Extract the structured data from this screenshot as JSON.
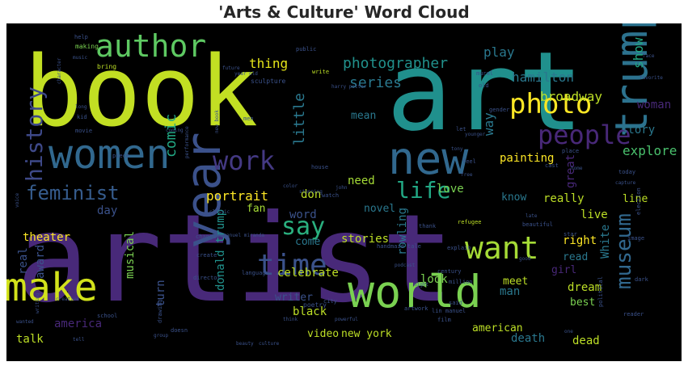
{
  "title": "'Arts & Culture' Word Cloud",
  "colors": {
    "page_bg": "#ffffff",
    "cloud_bg": "#000000"
  },
  "chart_data": {
    "type": "wordcloud",
    "title": "'Arts & Culture' Word Cloud",
    "colormap": "viridis",
    "words": [
      {
        "text": "artist",
        "weight": 1.0,
        "color": "#482979"
      },
      {
        "text": "art",
        "weight": 0.95,
        "color": "#20908d"
      },
      {
        "text": "book",
        "weight": 0.9,
        "color": "#c2df23"
      },
      {
        "text": "women",
        "weight": 0.55,
        "color": "#31688e"
      },
      {
        "text": "new",
        "weight": 0.55,
        "color": "#31688e"
      },
      {
        "text": "year",
        "weight": 0.5,
        "color": "#3b518b"
      },
      {
        "text": "make",
        "weight": 0.5,
        "color": "#d2e21b"
      },
      {
        "text": "world",
        "weight": 0.5,
        "color": "#7ad151"
      },
      {
        "text": "trump",
        "weight": 0.5,
        "color": "#2c728e"
      },
      {
        "text": "author",
        "weight": 0.4,
        "color": "#5ec962"
      },
      {
        "text": "people",
        "weight": 0.4,
        "color": "#482878"
      },
      {
        "text": "photo",
        "weight": 0.4,
        "color": "#fde725"
      },
      {
        "text": "want",
        "weight": 0.4,
        "color": "#a5db36"
      },
      {
        "text": "history",
        "weight": 0.35,
        "color": "#3e4989"
      },
      {
        "text": "work",
        "weight": 0.35,
        "color": "#443983"
      },
      {
        "text": "say",
        "weight": 0.35,
        "color": "#2ab07f"
      },
      {
        "text": "time",
        "weight": 0.35,
        "color": "#3b528b"
      },
      {
        "text": "life",
        "weight": 0.3,
        "color": "#22a884"
      },
      {
        "text": "feminist",
        "weight": 0.3,
        "color": "#365c8d"
      },
      {
        "text": "museum",
        "weight": 0.3,
        "color": "#31688e"
      },
      {
        "text": "photographer",
        "weight": 0.2,
        "color": "#21918c"
      },
      {
        "text": "series",
        "weight": 0.2,
        "color": "#2a788e"
      },
      {
        "text": "thing",
        "weight": 0.2,
        "color": "#e5e419"
      },
      {
        "text": "hamilton",
        "weight": 0.2,
        "color": "#2a788e"
      },
      {
        "text": "play",
        "weight": 0.2,
        "color": "#2a788e"
      },
      {
        "text": "show",
        "weight": 0.2,
        "color": "#22a884"
      },
      {
        "text": "broadway",
        "weight": 0.2,
        "color": "#bddf26"
      },
      {
        "text": "woman",
        "weight": 0.2,
        "color": "#482878"
      },
      {
        "text": "story",
        "weight": 0.2,
        "color": "#2a788e"
      },
      {
        "text": "explore",
        "weight": 0.2,
        "color": "#4ac16d"
      },
      {
        "text": "painting",
        "weight": 0.2,
        "color": "#fde725"
      },
      {
        "text": "mean",
        "weight": 0.15,
        "color": "#2a788e"
      },
      {
        "text": "way",
        "weight": 0.2,
        "color": "#2a788e"
      },
      {
        "text": "comic",
        "weight": 0.2,
        "color": "#22a884"
      },
      {
        "text": "little",
        "weight": 0.2,
        "color": "#2a788e"
      },
      {
        "text": "portrait",
        "weight": 0.2,
        "color": "#fde725"
      },
      {
        "text": "love",
        "weight": 0.2,
        "color": "#7ad151"
      },
      {
        "text": "really",
        "weight": 0.2,
        "color": "#bddf26"
      },
      {
        "text": "live",
        "weight": 0.2,
        "color": "#bddf26"
      },
      {
        "text": "line",
        "weight": 0.2,
        "color": "#bddf26"
      },
      {
        "text": "need",
        "weight": 0.2,
        "color": "#a5db36"
      },
      {
        "text": "don",
        "weight": 0.2,
        "color": "#bddf26"
      },
      {
        "text": "great",
        "weight": 0.2,
        "color": "#482878"
      },
      {
        "text": "know",
        "weight": 0.2,
        "color": "#2a788e"
      },
      {
        "text": "fan",
        "weight": 0.2,
        "color": "#a5db36"
      },
      {
        "text": "word",
        "weight": 0.2,
        "color": "#3b528b"
      },
      {
        "text": "day",
        "weight": 0.2,
        "color": "#3b528b"
      },
      {
        "text": "novel",
        "weight": 0.2,
        "color": "#2a788e"
      },
      {
        "text": "right",
        "weight": 0.2,
        "color": "#fde725"
      },
      {
        "text": "theater",
        "weight": 0.2,
        "color": "#fde725"
      },
      {
        "text": "donald trump",
        "weight": 0.2,
        "color": "#21918c"
      },
      {
        "text": "musical",
        "weight": 0.2,
        "color": "#7ad151"
      },
      {
        "text": "rowling",
        "weight": 0.2,
        "color": "#2a788e"
      },
      {
        "text": "read",
        "weight": 0.2,
        "color": "#2a788e"
      },
      {
        "text": "come",
        "weight": 0.2,
        "color": "#2a788e"
      },
      {
        "text": "celebrate",
        "weight": 0.2,
        "color": "#bddf26"
      },
      {
        "text": "look",
        "weight": 0.2,
        "color": "#7ad151"
      },
      {
        "text": "girl",
        "weight": 0.2,
        "color": "#482878"
      },
      {
        "text": "White",
        "weight": 0.2,
        "color": "#2a788e"
      },
      {
        "text": "dream",
        "weight": 0.2,
        "color": "#bddf26"
      },
      {
        "text": "best",
        "weight": 0.2,
        "color": "#7ad151"
      },
      {
        "text": "award",
        "weight": 0.2,
        "color": "#3b528b"
      },
      {
        "text": "real",
        "weight": 0.2,
        "color": "#3b528b"
      },
      {
        "text": "stories",
        "weight": 0.2,
        "color": "#bddf26"
      },
      {
        "text": "meet",
        "weight": 0.2,
        "color": "#bddf26"
      },
      {
        "text": "man",
        "weight": 0.2,
        "color": "#2a788e"
      },
      {
        "text": "writer",
        "weight": 0.2,
        "color": "#3b528b"
      },
      {
        "text": "turn",
        "weight": 0.2,
        "color": "#3b528b"
      },
      {
        "text": "black",
        "weight": 0.2,
        "color": "#bddf26"
      },
      {
        "text": "america",
        "weight": 0.2,
        "color": "#482878"
      },
      {
        "text": "talk",
        "weight": 0.2,
        "color": "#bddf26"
      },
      {
        "text": "video",
        "weight": 0.2,
        "color": "#bddf26"
      },
      {
        "text": "new york",
        "weight": 0.2,
        "color": "#bddf26"
      },
      {
        "text": "american",
        "weight": 0.2,
        "color": "#bddf26"
      },
      {
        "text": "death",
        "weight": 0.2,
        "color": "#2a788e"
      },
      {
        "text": "dead",
        "weight": 0.2,
        "color": "#bddf26"
      },
      {
        "text": "help",
        "weight": 0.1,
        "color": "#3b528b"
      },
      {
        "text": "making",
        "weight": 0.1,
        "color": "#7ad151"
      },
      {
        "text": "music",
        "weight": 0.1,
        "color": "#3b528b"
      },
      {
        "text": "bring",
        "weight": 0.1,
        "color": "#bddf26"
      },
      {
        "text": "character",
        "weight": 0.1,
        "color": "#3b528b"
      },
      {
        "text": "public",
        "weight": 0.1,
        "color": "#3b528b"
      },
      {
        "text": "future",
        "weight": 0.1,
        "color": "#3b528b"
      },
      {
        "text": "write",
        "weight": 0.1,
        "color": "#bddf26"
      },
      {
        "text": "sculpture",
        "weight": 0.1,
        "color": "#3b528b"
      },
      {
        "text": "year old",
        "weight": 0.1,
        "color": "#3b528b"
      },
      {
        "text": "harry potter",
        "weight": 0.1,
        "color": "#3b528b"
      },
      {
        "text": "mural",
        "weight": 0.1,
        "color": "#3b528b"
      },
      {
        "text": "old",
        "weight": 0.1,
        "color": "#3b528b"
      },
      {
        "text": "gender",
        "weight": 0.1,
        "color": "#3b528b"
      },
      {
        "text": "let",
        "weight": 0.1,
        "color": "#3b528b"
      },
      {
        "text": "younger",
        "weight": 0.1,
        "color": "#3b528b"
      },
      {
        "text": "favorite",
        "weight": 0.1,
        "color": "#3b528b"
      },
      {
        "text": "face",
        "weight": 0.1,
        "color": "#3b528b"
      },
      {
        "text": "kid",
        "weight": 0.1,
        "color": "#3b528b"
      },
      {
        "text": "long",
        "weight": 0.1,
        "color": "#3b528b"
      },
      {
        "text": "movie",
        "weight": 0.1,
        "color": "#3b528b"
      },
      {
        "text": "piece",
        "weight": 0.1,
        "color": "#3b528b"
      },
      {
        "text": "coming",
        "weight": 0.1,
        "color": "#3b528b"
      },
      {
        "text": "men",
        "weight": 0.1,
        "color": "#3b528b"
      },
      {
        "text": "new book",
        "weight": 0.1,
        "color": "#3b528b"
      },
      {
        "text": "performance",
        "weight": 0.1,
        "color": "#3b528b"
      },
      {
        "text": "house",
        "weight": 0.1,
        "color": "#3b528b"
      },
      {
        "text": "feel",
        "weight": 0.1,
        "color": "#3b528b"
      },
      {
        "text": "free",
        "weight": 0.1,
        "color": "#3b528b"
      },
      {
        "text": "cast",
        "weight": 0.1,
        "color": "#3b528b"
      },
      {
        "text": "place",
        "weight": 0.1,
        "color": "#3b528b"
      },
      {
        "text": "home",
        "weight": 0.1,
        "color": "#3b528b"
      },
      {
        "text": "today",
        "weight": 0.1,
        "color": "#3b528b"
      },
      {
        "text": "tony",
        "weight": 0.1,
        "color": "#3b528b"
      },
      {
        "text": "capture",
        "weight": 0.1,
        "color": "#3b528b"
      },
      {
        "text": "color",
        "weight": 0.1,
        "color": "#3b528b"
      },
      {
        "text": "john",
        "weight": 0.1,
        "color": "#3b528b"
      },
      {
        "text": "watch",
        "weight": 0.1,
        "color": "#3b528b"
      },
      {
        "text": "late",
        "weight": 0.1,
        "color": "#3b528b"
      },
      {
        "text": "beautiful",
        "weight": 0.1,
        "color": "#3b528b"
      },
      {
        "text": "election",
        "weight": 0.1,
        "color": "#3b528b"
      },
      {
        "text": "classic",
        "weight": 0.1,
        "color": "#3b528b"
      },
      {
        "text": "stunning",
        "weight": 0.1,
        "color": "#3b528b"
      },
      {
        "text": "thank",
        "weight": 0.1,
        "color": "#3b528b"
      },
      {
        "text": "refugee",
        "weight": 0.1,
        "color": "#bddf26"
      },
      {
        "text": "star",
        "weight": 0.1,
        "color": "#3b528b"
      },
      {
        "text": "image",
        "weight": 0.1,
        "color": "#3b528b"
      },
      {
        "text": "voice",
        "weight": 0.1,
        "color": "#3b528b"
      },
      {
        "text": "change",
        "weight": 0.1,
        "color": "#3b528b"
      },
      {
        "text": "lin manuel miranda",
        "weight": 0.1,
        "color": "#3b528b"
      },
      {
        "text": "create",
        "weight": 0.1,
        "color": "#3b528b"
      },
      {
        "text": "handmaid tale",
        "weight": 0.1,
        "color": "#3b528b"
      },
      {
        "text": "podcast",
        "weight": 0.1,
        "color": "#3b528b"
      },
      {
        "text": "century",
        "weight": 0.1,
        "color": "#3b528b"
      },
      {
        "text": "good",
        "weight": 0.1,
        "color": "#3b528b"
      },
      {
        "text": "director",
        "weight": 0.1,
        "color": "#3b528b"
      },
      {
        "text": "language",
        "weight": 0.1,
        "color": "#3b528b"
      },
      {
        "text": "explain",
        "weight": 0.1,
        "color": "#3b528b"
      },
      {
        "text": "million",
        "weight": 0.1,
        "color": "#3b528b"
      },
      {
        "text": "night",
        "weight": 0.1,
        "color": "#3b528b"
      },
      {
        "text": "creative",
        "weight": 0.1,
        "color": "#3b528b"
      },
      {
        "text": "writing",
        "weight": 0.1,
        "color": "#3b528b"
      },
      {
        "text": "wanted",
        "weight": 0.1,
        "color": "#3b528b"
      },
      {
        "text": "school",
        "weight": 0.1,
        "color": "#3b528b"
      },
      {
        "text": "city",
        "weight": 0.1,
        "color": "#3b528b"
      },
      {
        "text": "poetry",
        "weight": 0.1,
        "color": "#3b528b"
      },
      {
        "text": "think",
        "weight": 0.1,
        "color": "#3b528b"
      },
      {
        "text": "artwork",
        "weight": 0.1,
        "color": "#3b528b"
      },
      {
        "text": "said",
        "weight": 0.1,
        "color": "#3b528b"
      },
      {
        "text": "lin manuel",
        "weight": 0.1,
        "color": "#3b528b"
      },
      {
        "text": "film",
        "weight": 0.1,
        "color": "#3b528b"
      },
      {
        "text": "political",
        "weight": 0.1,
        "color": "#3b528b"
      },
      {
        "text": "dark",
        "weight": 0.1,
        "color": "#3b528b"
      },
      {
        "text": "drawing",
        "weight": 0.1,
        "color": "#3b528b"
      },
      {
        "text": "powerful",
        "weight": 0.1,
        "color": "#3b528b"
      },
      {
        "text": "reader",
        "weight": 0.1,
        "color": "#3b528b"
      },
      {
        "text": "group",
        "weight": 0.1,
        "color": "#3b528b"
      },
      {
        "text": "tell",
        "weight": 0.1,
        "color": "#3b528b"
      },
      {
        "text": "doesn",
        "weight": 0.1,
        "color": "#3b528b"
      },
      {
        "text": "beauty",
        "weight": 0.1,
        "color": "#3b528b"
      },
      {
        "text": "culture",
        "weight": 0.1,
        "color": "#3b528b"
      },
      {
        "text": "one",
        "weight": 0.1,
        "color": "#3b528b"
      }
    ]
  }
}
